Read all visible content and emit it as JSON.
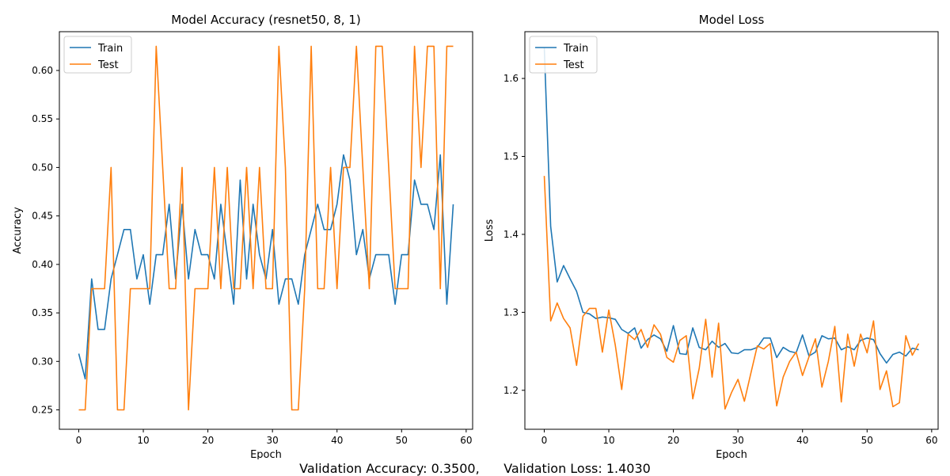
{
  "footer_text": "Validation Accuracy: 0.3500,      Validation Loss: 1.4030",
  "colors": {
    "train": "#1f77b4",
    "test": "#ff7f0e"
  },
  "chart_data": [
    {
      "type": "line",
      "title": "Model Accuracy (resnet50, 8, 1)",
      "xlabel": "Epoch",
      "ylabel": "Accuracy",
      "xlim": [
        -3,
        61
      ],
      "ylim": [
        0.23,
        0.64
      ],
      "xticks": [
        0,
        10,
        20,
        30,
        40,
        50,
        60
      ],
      "yticks": [
        0.25,
        0.3,
        0.35,
        0.4,
        0.45,
        0.5,
        0.55,
        0.6
      ],
      "ytick_labels": [
        "0.25",
        "0.30",
        "0.35",
        "0.40",
        "0.45",
        "0.50",
        "0.55",
        "0.60"
      ],
      "grid": false,
      "legend": "upper-left",
      "x": [
        0,
        1,
        2,
        3,
        4,
        5,
        6,
        7,
        8,
        9,
        10,
        11,
        12,
        13,
        14,
        15,
        16,
        17,
        18,
        19,
        20,
        21,
        22,
        23,
        24,
        25,
        26,
        27,
        28,
        29,
        30,
        31,
        32,
        33,
        34,
        35,
        36,
        37,
        38,
        39,
        40,
        41,
        42,
        43,
        44,
        45,
        46,
        47,
        48,
        49,
        50,
        51,
        52,
        53,
        54,
        55,
        56,
        57,
        58
      ],
      "series": [
        {
          "name": "Train",
          "values": [
            0.308,
            0.282,
            0.385,
            0.333,
            0.333,
            0.385,
            0.41,
            0.436,
            0.436,
            0.385,
            0.41,
            0.359,
            0.41,
            0.41,
            0.462,
            0.385,
            0.462,
            0.385,
            0.436,
            0.41,
            0.41,
            0.385,
            0.462,
            0.41,
            0.359,
            0.487,
            0.385,
            0.462,
            0.41,
            0.385,
            0.436,
            0.359,
            0.385,
            0.385,
            0.359,
            0.41,
            0.436,
            0.462,
            0.436,
            0.436,
            0.462,
            0.513,
            0.487,
            0.41,
            0.436,
            0.385,
            0.41,
            0.41,
            0.41,
            0.359,
            0.41,
            0.41,
            0.487,
            0.462,
            0.462,
            0.436,
            0.513,
            0.359,
            0.462
          ]
        },
        {
          "name": "Test",
          "values": [
            0.25,
            0.25,
            0.375,
            0.375,
            0.375,
            0.5,
            0.25,
            0.25,
            0.375,
            0.375,
            0.375,
            0.375,
            0.625,
            0.5,
            0.375,
            0.375,
            0.5,
            0.25,
            0.375,
            0.375,
            0.375,
            0.5,
            0.375,
            0.5,
            0.375,
            0.375,
            0.5,
            0.375,
            0.5,
            0.375,
            0.375,
            0.625,
            0.5,
            0.25,
            0.25,
            0.375,
            0.625,
            0.375,
            0.375,
            0.5,
            0.375,
            0.5,
            0.5,
            0.625,
            0.5,
            0.375,
            0.625,
            0.625,
            0.5,
            0.375,
            0.375,
            0.375,
            0.625,
            0.5,
            0.625,
            0.625,
            0.375,
            0.625,
            0.625
          ]
        }
      ]
    },
    {
      "type": "line",
      "title": "Model Loss",
      "xlabel": "Epoch",
      "ylabel": "Loss",
      "xlim": [
        -3,
        61
      ],
      "ylim": [
        1.15,
        1.66
      ],
      "xticks": [
        0,
        10,
        20,
        30,
        40,
        50,
        60
      ],
      "yticks": [
        1.2,
        1.3,
        1.4,
        1.5,
        1.6
      ],
      "ytick_labels": [
        "1.2",
        "1.3",
        "1.4",
        "1.5",
        "1.6"
      ],
      "grid": false,
      "legend": "upper-left",
      "x": [
        0,
        1,
        2,
        3,
        4,
        5,
        6,
        7,
        8,
        9,
        10,
        11,
        12,
        13,
        14,
        15,
        16,
        17,
        18,
        19,
        20,
        21,
        22,
        23,
        24,
        25,
        26,
        27,
        28,
        29,
        30,
        31,
        32,
        33,
        34,
        35,
        36,
        37,
        38,
        39,
        40,
        41,
        42,
        43,
        44,
        45,
        46,
        47,
        48,
        49,
        50,
        51,
        52,
        53,
        54,
        55,
        56,
        57,
        58
      ],
      "series": [
        {
          "name": "Train",
          "values": [
            1.64,
            1.41,
            1.339,
            1.36,
            1.343,
            1.327,
            1.3,
            1.298,
            1.292,
            1.294,
            1.293,
            1.291,
            1.278,
            1.273,
            1.28,
            1.254,
            1.265,
            1.271,
            1.266,
            1.25,
            1.283,
            1.247,
            1.246,
            1.28,
            1.255,
            1.252,
            1.263,
            1.255,
            1.26,
            1.248,
            1.247,
            1.252,
            1.252,
            1.255,
            1.267,
            1.267,
            1.242,
            1.255,
            1.25,
            1.248,
            1.271,
            1.244,
            1.249,
            1.27,
            1.266,
            1.267,
            1.252,
            1.256,
            1.252,
            1.264,
            1.267,
            1.265,
            1.247,
            1.235,
            1.246,
            1.249,
            1.244,
            1.254,
            1.252
          ]
        },
        {
          "name": "Test",
          "values": [
            1.475,
            1.289,
            1.312,
            1.292,
            1.28,
            1.232,
            1.295,
            1.305,
            1.305,
            1.249,
            1.303,
            1.258,
            1.201,
            1.272,
            1.265,
            1.278,
            1.255,
            1.284,
            1.272,
            1.242,
            1.236,
            1.264,
            1.27,
            1.189,
            1.228,
            1.291,
            1.217,
            1.286,
            1.176,
            1.197,
            1.214,
            1.186,
            1.222,
            1.257,
            1.253,
            1.26,
            1.18,
            1.217,
            1.237,
            1.249,
            1.219,
            1.243,
            1.266,
            1.204,
            1.237,
            1.282,
            1.185,
            1.272,
            1.231,
            1.272,
            1.248,
            1.289,
            1.201,
            1.225,
            1.179,
            1.184,
            1.27,
            1.245,
            1.26
          ]
        }
      ]
    }
  ]
}
